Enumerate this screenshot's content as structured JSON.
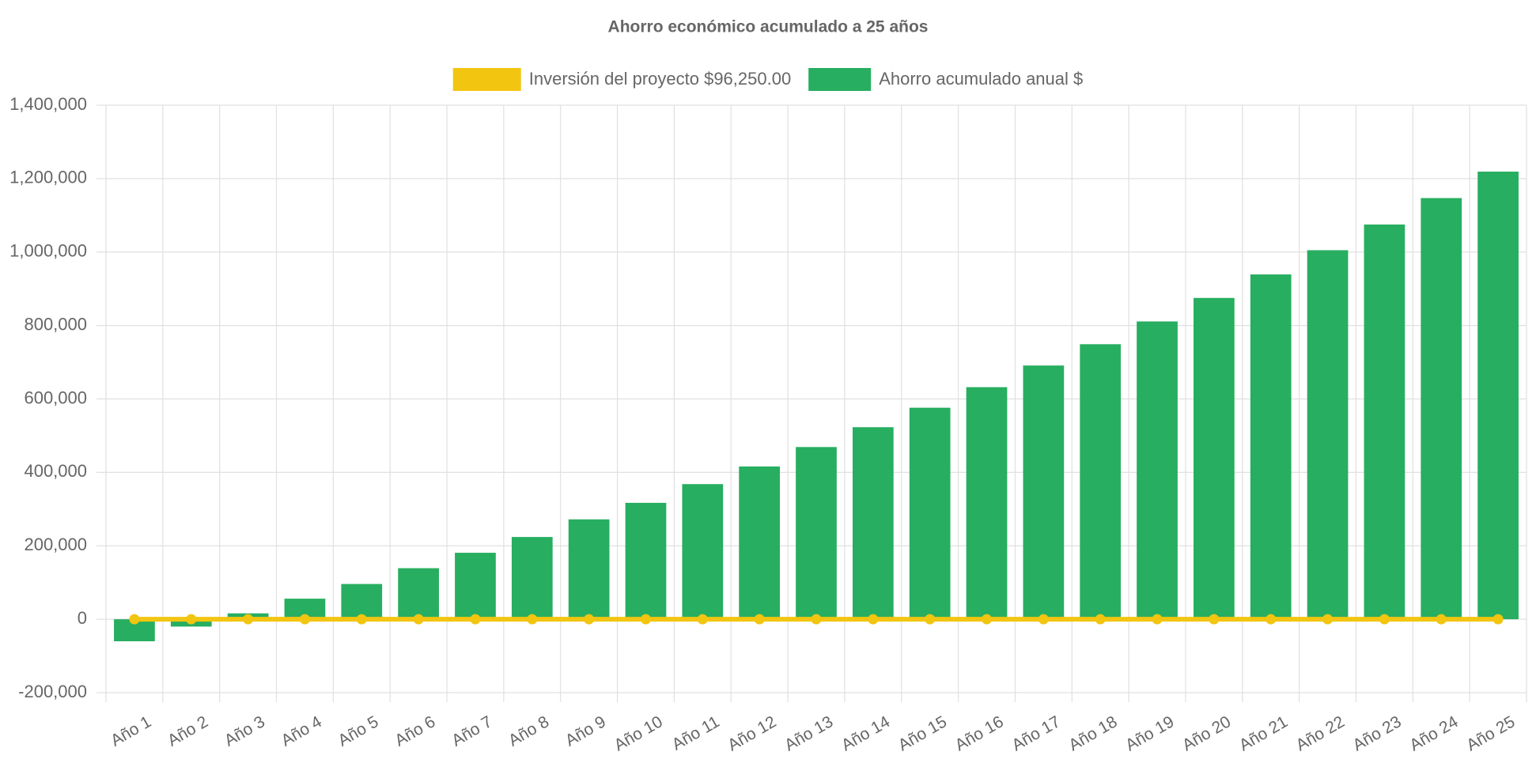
{
  "chart_data": {
    "type": "bar",
    "title": "Ahorro económico acumulado a 25 años",
    "categories": [
      "Año 1",
      "Año 2",
      "Año 3",
      "Año 4",
      "Año 5",
      "Año 6",
      "Año 7",
      "Año 8",
      "Año 9",
      "Año 10",
      "Año 11",
      "Año 12",
      "Año 13",
      "Año 14",
      "Año 15",
      "Año 16",
      "Año 17",
      "Año 18",
      "Año 19",
      "Año 20",
      "Año 21",
      "Año 22",
      "Año 23",
      "Año 24",
      "Año 25"
    ],
    "series": [
      {
        "name": "Inversión del proyecto $96,250.00",
        "type": "line",
        "color": "#f2c511",
        "values": [
          0,
          0,
          0,
          0,
          0,
          0,
          0,
          0,
          0,
          0,
          0,
          0,
          0,
          0,
          0,
          0,
          0,
          0,
          0,
          0,
          0,
          0,
          0,
          0,
          0
        ]
      },
      {
        "name": "Ahorro acumulado anual $",
        "type": "bar",
        "color": "#27ae60",
        "values": [
          -60000,
          -20000,
          16000,
          56000,
          96000,
          139000,
          181000,
          224000,
          272000,
          317000,
          368000,
          416000,
          469000,
          523000,
          576000,
          632000,
          691000,
          749000,
          811000,
          875000,
          939000,
          1005000,
          1075000,
          1147000,
          1219000
        ]
      }
    ],
    "ylim": [
      -200000,
      1400000
    ],
    "yticks": [
      {
        "value": -200000,
        "label": "-200,000"
      },
      0,
      {
        "value": 200000,
        "label": "200,000"
      },
      {
        "value": 400000,
        "label": "400,000"
      },
      {
        "value": 600000,
        "label": "600,000"
      },
      {
        "value": 800000,
        "label": "800,000"
      },
      {
        "value": 1000000,
        "label": "1,000,000"
      },
      {
        "value": 1200000,
        "label": "1,200,000"
      },
      {
        "value": 1400000,
        "label": "1,400,000"
      }
    ],
    "grid": true,
    "legend": "top"
  }
}
